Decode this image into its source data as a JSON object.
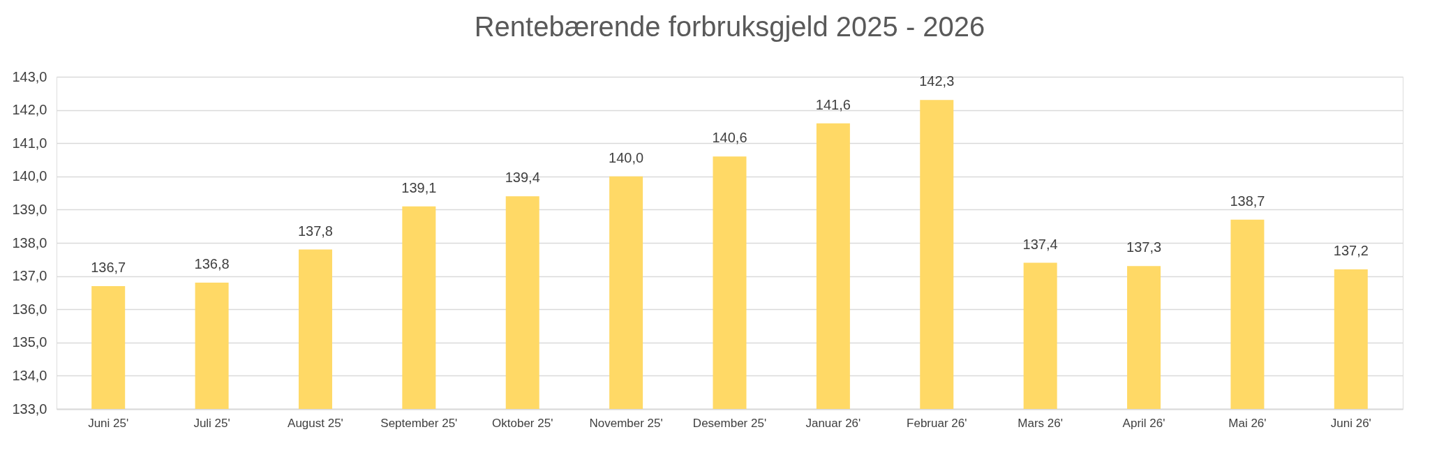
{
  "chart_data": {
    "type": "bar",
    "title": "Rentebærende forbruksgjeld 2025 - 2026",
    "categories": [
      "Juni 25'",
      "Juli 25'",
      "August 25'",
      "September 25'",
      "Oktober 25'",
      "November 25'",
      "Desember 25'",
      "Januar 26'",
      "Februar 26'",
      "Mars 26'",
      "April 26'",
      "Mai 26'",
      "Juni 26'"
    ],
    "values": [
      136.7,
      136.8,
      137.8,
      139.1,
      139.4,
      140.0,
      140.6,
      141.6,
      142.3,
      137.4,
      137.3,
      138.7,
      137.2
    ],
    "value_labels": [
      "136,7",
      "136,8",
      "137,8",
      "139,1",
      "139,4",
      "140,0",
      "140,6",
      "141,6",
      "142,3",
      "137,4",
      "137,3",
      "138,7",
      "137,2"
    ],
    "color": "#ffd966",
    "ylim": [
      133,
      143
    ],
    "yticks": [
      {
        "value": 133,
        "label": "133,0"
      },
      {
        "value": 134,
        "label": "134,0"
      },
      {
        "value": 135,
        "label": "135,0"
      },
      {
        "value": 136,
        "label": "136,0"
      },
      {
        "value": 137,
        "label": "137,0"
      },
      {
        "value": 138,
        "label": "138,0"
      },
      {
        "value": 139,
        "label": "139,0"
      },
      {
        "value": 140,
        "label": "140,0"
      },
      {
        "value": 141,
        "label": "141,0"
      },
      {
        "value": 142,
        "label": "142,0"
      },
      {
        "value": 143,
        "label": "143,0"
      }
    ],
    "grid": "y"
  }
}
